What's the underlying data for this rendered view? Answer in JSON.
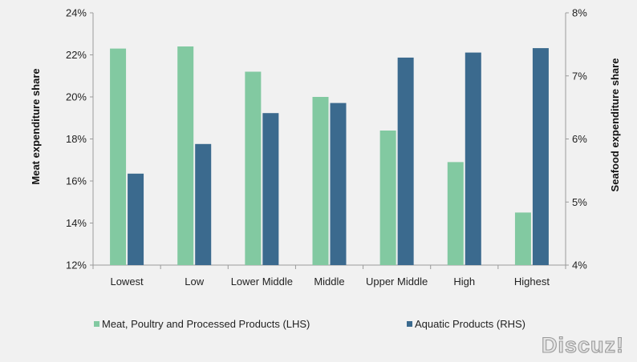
{
  "chart_data": {
    "type": "bar",
    "title": "",
    "categories": [
      "Lowest",
      "Low",
      "Lower Middle",
      "Middle",
      "Upper Middle",
      "High",
      "Highest"
    ],
    "series": [
      {
        "name": "Meat, Poultry and Processed Products (LHS)",
        "axis": "left",
        "color": "#82c9a1",
        "values": [
          22.3,
          22.4,
          21.2,
          20.0,
          18.4,
          16.9,
          14.5
        ]
      },
      {
        "name": "Aquatic Products (RHS)",
        "axis": "right",
        "color": "#3b6a8e",
        "values": [
          5.45,
          5.92,
          6.41,
          6.57,
          7.29,
          7.37,
          7.44
        ]
      }
    ],
    "ylabel": "Meat expenditure share",
    "y2label": "Seafood expenditure share",
    "ylim": [
      12,
      24
    ],
    "y2lim": [
      4,
      8
    ],
    "y_ticks": [
      "12%",
      "14%",
      "16%",
      "18%",
      "20%",
      "22%",
      "24%"
    ],
    "y2_ticks": [
      "4%",
      "5%",
      "6%",
      "7%",
      "8%"
    ],
    "grid": false,
    "legend_position": "bottom"
  },
  "watermark": "Discuz!"
}
